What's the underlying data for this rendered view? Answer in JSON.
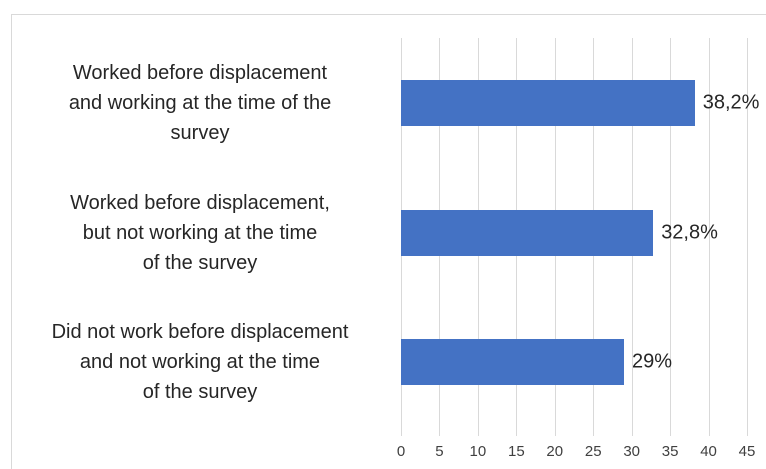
{
  "chart_data": {
    "type": "bar",
    "orientation": "horizontal",
    "categories": [
      "Worked before displacement\nand working at the time of the\nsurvey",
      "Worked before displacement,\nbut not working at the time\nof the survey",
      "Did not work before displacement\nand not working at the time\nof the survey"
    ],
    "values": [
      38.2,
      32.8,
      29
    ],
    "value_labels": [
      "38,2%",
      "32,8%",
      "29%"
    ],
    "color": "#4472c4",
    "xlim": [
      0,
      45
    ],
    "xticks": [
      0,
      5,
      10,
      15,
      20,
      25,
      30,
      35,
      40,
      45
    ],
    "grid": true
  }
}
